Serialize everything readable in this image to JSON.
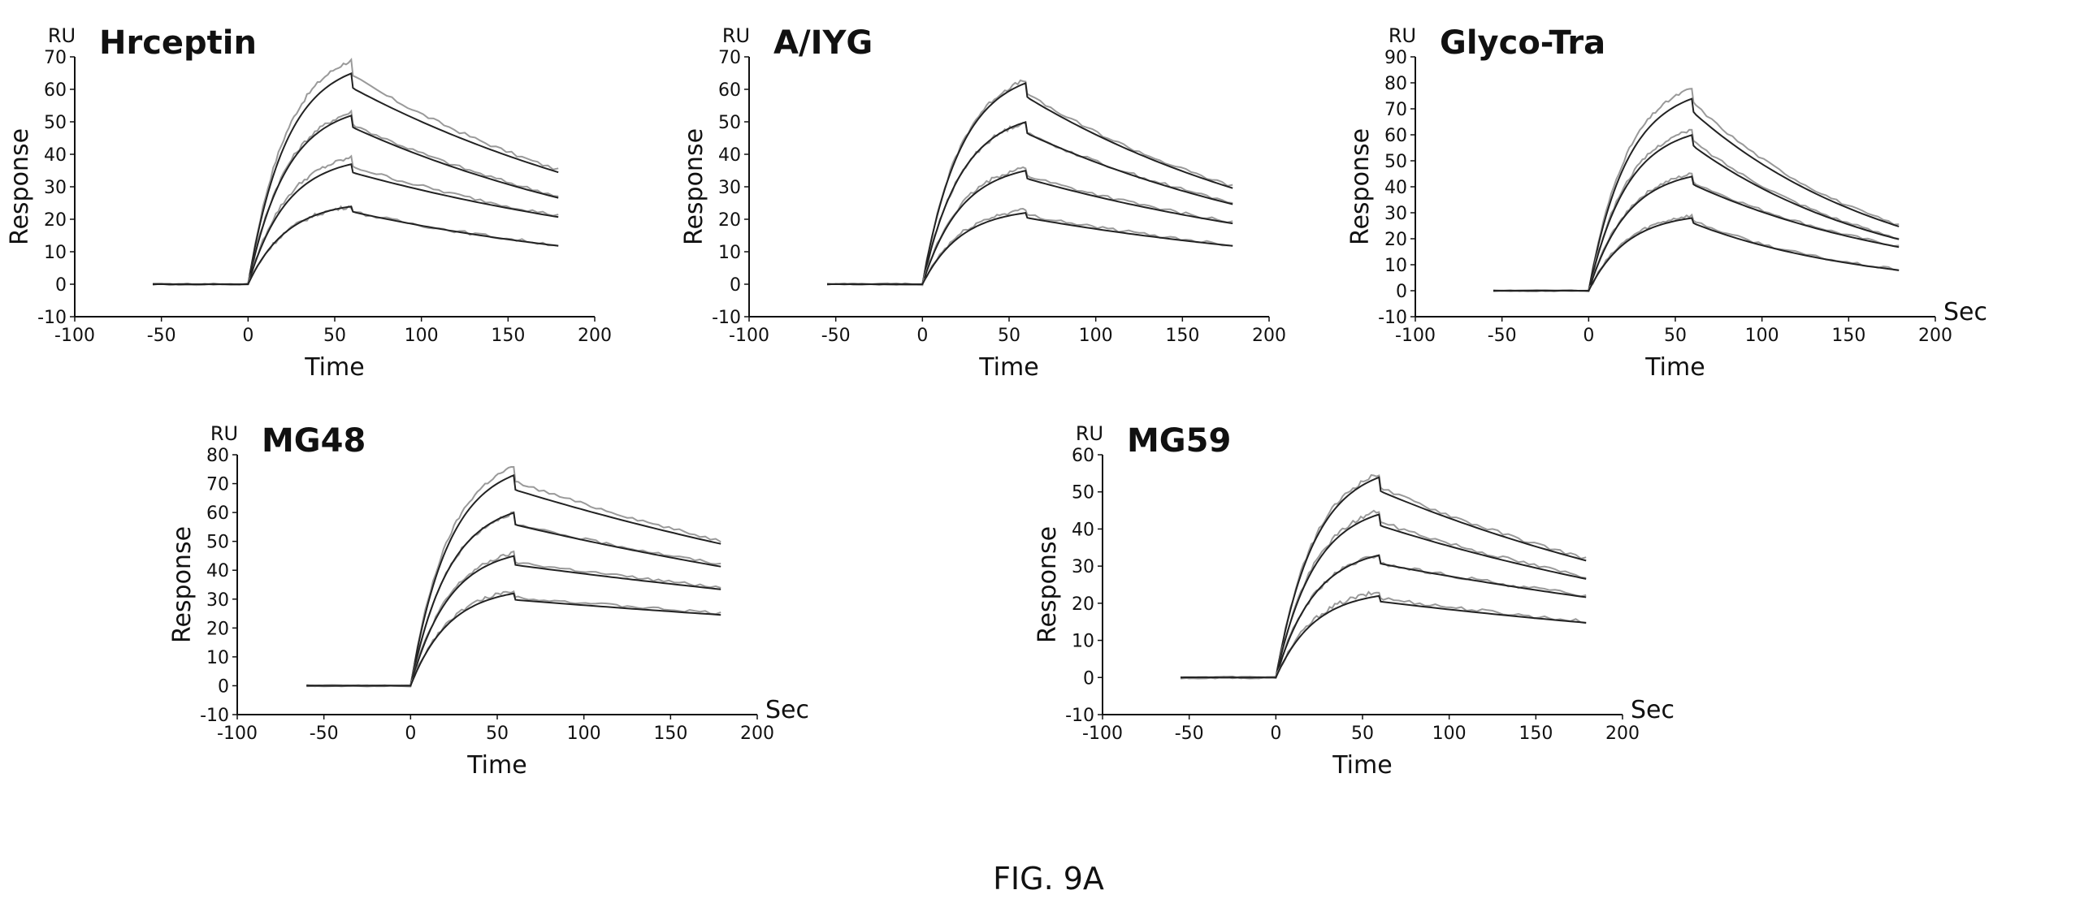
{
  "figure": {
    "caption": "FIG. 9A"
  },
  "chart_data": [
    {
      "type": "line",
      "title": "Hrceptin",
      "unit": "RU",
      "xlabel": "Time",
      "ylabel": "Response",
      "xunit": "",
      "xlim": [
        -100,
        200
      ],
      "ylim": [
        -10,
        70
      ],
      "xticks": [
        -100,
        -50,
        0,
        50,
        100,
        150,
        200
      ],
      "yticks": [
        -10,
        0,
        10,
        20,
        30,
        40,
        50,
        60,
        70
      ],
      "baseline_start": -55,
      "end_time": 180,
      "series": [
        {
          "peak": 69,
          "end": 35,
          "fit_peak": 65,
          "noisy": true
        },
        {
          "peak": 53,
          "end": 27,
          "fit_peak": 52,
          "noisy": false
        },
        {
          "peak": 39,
          "end": 21,
          "fit_peak": 37,
          "noisy": true
        },
        {
          "peak": 24,
          "end": 12,
          "fit_peak": 24,
          "noisy": false
        }
      ]
    },
    {
      "type": "line",
      "title": "A/IYG",
      "unit": "RU",
      "xlabel": "Time",
      "ylabel": "Response",
      "xunit": "",
      "xlim": [
        -100,
        200
      ],
      "ylim": [
        -10,
        70
      ],
      "xticks": [
        -100,
        -50,
        0,
        50,
        100,
        150,
        200
      ],
      "yticks": [
        -10,
        0,
        10,
        20,
        30,
        40,
        50,
        60,
        70
      ],
      "baseline_start": -55,
      "end_time": 180,
      "series": [
        {
          "peak": 63,
          "end": 30,
          "fit_peak": 62,
          "noisy": true
        },
        {
          "peak": 50,
          "end": 25,
          "fit_peak": 50,
          "noisy": false
        },
        {
          "peak": 36,
          "end": 19,
          "fit_peak": 35,
          "noisy": false
        },
        {
          "peak": 23,
          "end": 12,
          "fit_peak": 22,
          "noisy": true
        }
      ]
    },
    {
      "type": "line",
      "title": "Glyco-Tra",
      "unit": "RU",
      "xlabel": "Time",
      "ylabel": "Response",
      "xunit": "Sec",
      "xlim": [
        -100,
        200
      ],
      "ylim": [
        -10,
        90
      ],
      "xticks": [
        -100,
        -50,
        0,
        50,
        100,
        150,
        200
      ],
      "yticks": [
        -10,
        0,
        10,
        20,
        30,
        40,
        50,
        60,
        70,
        80,
        90
      ],
      "baseline_start": -55,
      "end_time": 180,
      "series": [
        {
          "peak": 78,
          "end": 25,
          "fit_peak": 74,
          "noisy": true
        },
        {
          "peak": 62,
          "end": 20,
          "fit_peak": 60,
          "noisy": true
        },
        {
          "peak": 45,
          "end": 17,
          "fit_peak": 44,
          "noisy": true
        },
        {
          "peak": 29,
          "end": 8,
          "fit_peak": 28,
          "noisy": false
        }
      ]
    },
    {
      "type": "line",
      "title": "MG48",
      "unit": "RU",
      "xlabel": "Time",
      "ylabel": "Response",
      "xunit": "Sec",
      "xlim": [
        -100,
        200
      ],
      "ylim": [
        -10,
        80
      ],
      "xticks": [
        -100,
        -50,
        0,
        50,
        100,
        150,
        200
      ],
      "yticks": [
        -10,
        0,
        10,
        20,
        30,
        40,
        50,
        60,
        70,
        80
      ],
      "baseline_start": -60,
      "end_time": 180,
      "series": [
        {
          "peak": 76,
          "end": 50,
          "fit_peak": 73,
          "noisy": true
        },
        {
          "peak": 60,
          "end": 42,
          "fit_peak": 60,
          "noisy": false
        },
        {
          "peak": 46,
          "end": 34,
          "fit_peak": 45,
          "noisy": true
        },
        {
          "peak": 33,
          "end": 25,
          "fit_peak": 32,
          "noisy": false
        }
      ]
    },
    {
      "type": "line",
      "title": "MG59",
      "unit": "RU",
      "xlabel": "Time",
      "ylabel": "Response",
      "xunit": "Sec",
      "xlim": [
        -100,
        200
      ],
      "ylim": [
        -10,
        60
      ],
      "xticks": [
        -100,
        -50,
        0,
        50,
        100,
        150,
        200
      ],
      "yticks": [
        -10,
        0,
        10,
        20,
        30,
        40,
        50,
        60
      ],
      "baseline_start": -55,
      "end_time": 180,
      "series": [
        {
          "peak": 55,
          "end": 32,
          "fit_peak": 54,
          "noisy": true
        },
        {
          "peak": 45,
          "end": 27,
          "fit_peak": 44,
          "noisy": false
        },
        {
          "peak": 33,
          "end": 22,
          "fit_peak": 33,
          "noisy": true
        },
        {
          "peak": 23,
          "end": 15,
          "fit_peak": 22,
          "noisy": false
        }
      ]
    }
  ]
}
